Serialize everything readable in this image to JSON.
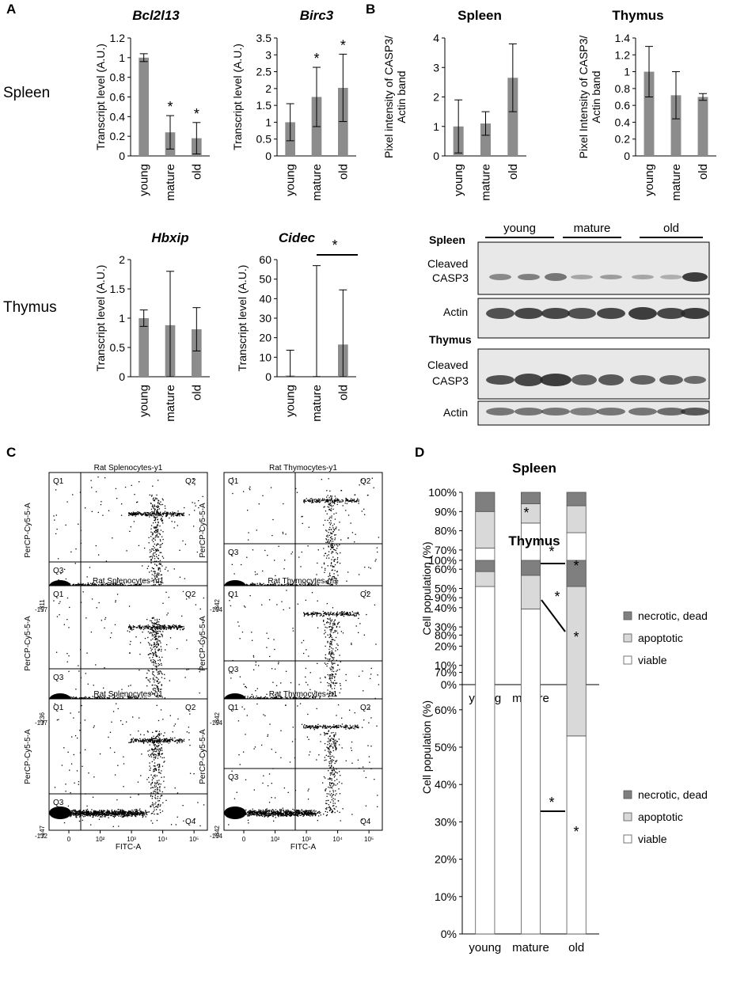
{
  "panels": {
    "A": "A",
    "B": "B",
    "C": "C",
    "D": "D"
  },
  "rows": {
    "spleen": "Spleen",
    "thymus": "Thymus"
  },
  "chart_data": [
    {
      "id": "bcl2l13",
      "type": "bar",
      "title": "Bcl2l13",
      "ylabel": "Transcript level (A.U.)",
      "categories": [
        "young",
        "mature",
        "old"
      ],
      "values": [
        1.0,
        0.24,
        0.18
      ],
      "errors": [
        0.04,
        0.17,
        0.16
      ],
      "ylim": [
        0,
        1.2
      ],
      "ticks": [
        "0",
        "0.2",
        "0.4",
        "0.6",
        "0.8",
        "1",
        "1.2"
      ],
      "tickvals": [
        0,
        0.2,
        0.4,
        0.6,
        0.8,
        1.0,
        1.2
      ],
      "stars": [
        "",
        "*",
        "*"
      ]
    },
    {
      "id": "birc3",
      "type": "bar",
      "title": "Birc3",
      "ylabel": "Transcript level (A.U.)",
      "categories": [
        "young",
        "mature",
        "old"
      ],
      "values": [
        1.0,
        1.75,
        2.02
      ],
      "errors": [
        0.55,
        0.88,
        1.0
      ],
      "ylim": [
        0,
        3.5
      ],
      "ticks": [
        "0",
        "0.5",
        "1",
        "1.5",
        "2",
        "2.5",
        "3",
        "3.5"
      ],
      "tickvals": [
        0,
        0.5,
        1,
        1.5,
        2,
        2.5,
        3,
        3.5
      ],
      "stars": [
        "",
        "*",
        "*"
      ]
    },
    {
      "id": "hbxip",
      "type": "bar",
      "title": "Hbxip",
      "ylabel": "Transcript level (A.U.)",
      "categories": [
        "young",
        "mature",
        "old"
      ],
      "values": [
        1.0,
        0.88,
        0.81
      ],
      "errors": [
        0.14,
        0.92,
        0.37
      ],
      "ylim": [
        0,
        2
      ],
      "ticks": [
        "0",
        "0.5",
        "1",
        "1.5",
        "2"
      ],
      "tickvals": [
        0,
        0.5,
        1,
        1.5,
        2
      ],
      "stars": [
        "",
        "",
        ""
      ]
    },
    {
      "id": "cidec",
      "type": "bar",
      "title": "Cidec",
      "ylabel": "Transcript level (A.U.)",
      "categories": [
        "young",
        "mature",
        "old"
      ],
      "values": [
        0.6,
        0.4,
        16.5
      ],
      "errors": [
        13,
        56.5,
        28
      ],
      "ylim": [
        0,
        60
      ],
      "ticks": [
        "0",
        "10",
        "20",
        "30",
        "40",
        "50",
        "60"
      ],
      "tickvals": [
        0,
        10,
        20,
        30,
        40,
        50,
        60
      ],
      "stars": [
        "",
        "",
        ""
      ],
      "bracket_star": "*"
    },
    {
      "id": "casp3_spleen",
      "type": "bar",
      "title": "Spleen",
      "ylabel": "Pixel intensity of CASP3/ Actin band",
      "categories": [
        "young",
        "mature",
        "old"
      ],
      "values": [
        1.0,
        1.1,
        2.65
      ],
      "errors": [
        0.9,
        0.4,
        1.15
      ],
      "ylim": [
        0,
        4
      ],
      "ticks": [
        "0",
        "1",
        "2",
        "3",
        "4"
      ],
      "tickvals": [
        0,
        1,
        2,
        3,
        4
      ],
      "stars": [
        "",
        "",
        ""
      ]
    },
    {
      "id": "casp3_thymus",
      "type": "bar",
      "title": "Thymus",
      "ylabel": "Pixel Intensity of CASP3/ Actin band",
      "categories": [
        "young",
        "mature",
        "old"
      ],
      "values": [
        1.0,
        0.72,
        0.7
      ],
      "errors": [
        0.3,
        0.28,
        0.04
      ],
      "ylim": [
        0,
        1.4
      ],
      "ticks": [
        "0",
        "0.2",
        "0.4",
        "0.6",
        "0.8",
        "1",
        "1.2",
        "1.4"
      ],
      "tickvals": [
        0,
        0.2,
        0.4,
        0.6,
        0.8,
        1.0,
        1.2,
        1.4
      ],
      "stars": [
        "",
        "",
        ""
      ]
    },
    {
      "id": "pop_spleen",
      "type": "stacked-bar",
      "title": "Spleen",
      "ylabel": "Cell population (%)",
      "categories": [
        "young",
        "mature",
        "old"
      ],
      "series": [
        {
          "name": "viable",
          "values": [
            71,
            84,
            79
          ]
        },
        {
          "name": "apoptotic",
          "values": [
            19,
            10,
            14
          ]
        },
        {
          "name": "necrotic, dead",
          "values": [
            10,
            6,
            7
          ]
        }
      ],
      "ylim": [
        0,
        100
      ],
      "ticks": [
        "0%",
        "10%",
        "20%",
        "30%",
        "40%",
        "50%",
        "60%",
        "70%",
        "80%",
        "90%",
        "100%"
      ]
    },
    {
      "id": "pop_thymus",
      "type": "stacked-bar",
      "title": "Thymus",
      "ylabel": "Cell population (%)",
      "categories": [
        "young",
        "mature",
        "old"
      ],
      "series": [
        {
          "name": "viable",
          "values": [
            93,
            87,
            53
          ]
        },
        {
          "name": "apoptotic",
          "values": [
            4,
            9,
            40
          ]
        },
        {
          "name": "necrotic, dead",
          "values": [
            3,
            4,
            7
          ]
        }
      ],
      "ylim": [
        0,
        100
      ],
      "ticks": [
        "0%",
        "10%",
        "20%",
        "30%",
        "40%",
        "50%",
        "60%",
        "70%",
        "80%",
        "90%",
        "100%"
      ]
    }
  ],
  "legend": [
    "necrotic, dead",
    "apoptotic",
    "viable"
  ],
  "colors": {
    "bar": "#8c8c8c",
    "necrotic": "#7f7f7f",
    "apoptotic": "#d9d9d9",
    "viable": "#ffffff"
  },
  "blot": {
    "groups": [
      "young",
      "mature",
      "old"
    ],
    "spleen": "Spleen",
    "thymus": "Thymus",
    "cleaved1": "Cleaved",
    "cleaved2": "CASP3",
    "actin": "Actin"
  },
  "flow": {
    "xlabel": "FITC-A",
    "ylabel": "PerCP-Cy5-5-A",
    "quadrants": [
      "Q1",
      "Q2",
      "Q3",
      "Q4"
    ],
    "plots": [
      {
        "title": "Rat Splenocytes-y1",
        "ymin": "-311",
        "xmin": "-157"
      },
      {
        "title": "Rat Thymocytes-y1",
        "ymin": "-342",
        "xmin": "-164"
      },
      {
        "title": "Rat Splenocytes-m1",
        "ymin": "-236",
        "xmin": "-137"
      },
      {
        "title": "Rat Thymocytes-m1",
        "ymin": "-342",
        "xmin": "-164"
      },
      {
        "title": "Rat Splenocytes-o1",
        "ymin": "-147",
        "xmin": "-132"
      },
      {
        "title": "Rat Thymocytes-o1",
        "ymin": "-342",
        "xmin": "-164"
      }
    ]
  }
}
